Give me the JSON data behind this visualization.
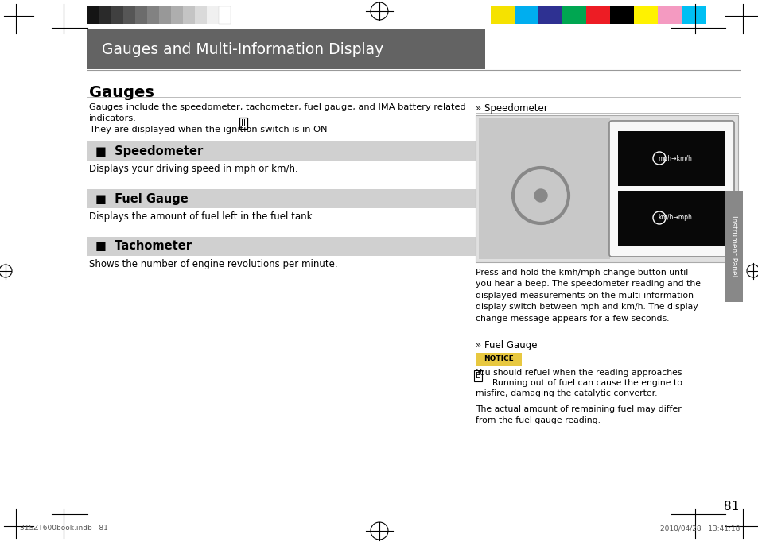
{
  "page_bg": "#ffffff",
  "content_bg": "#f0f0f0",
  "header_bar_color": "#636363",
  "header_bar_text": "Gauges and Multi-Information Display",
  "header_bar_text_color": "#ffffff",
  "title": "Gauges",
  "body_text_1": "Gauges include the speedometer, tachometer, fuel gauge, and IMA battery related\nindicators.",
  "body_text_2": "They are displayed when the ignition switch is in ON ",
  "ii_symbol": "II",
  "section_bar_bg": "#d0d0d0",
  "section_labels": [
    "■  Speedometer",
    "■  Fuel Gauge",
    "■  Tachometer"
  ],
  "section_descs": [
    "Displays your driving speed in mph or km/h.",
    "Displays the amount of fuel left in the fuel tank.",
    "Shows the number of engine revolutions per minute."
  ],
  "speedometer_label": "» Speedometer",
  "press_hold_text": "Press and hold the kmh/mph change button until\nyou hear a beep. The speedometer reading and the\ndisplayed measurements on the multi-information\ndisplay switch between mph and km/h. The display\nchange message appears for a few seconds.",
  "fuel_gauge_label": "» Fuel Gauge",
  "notice_label": "NOTICE",
  "notice_bg": "#e8c840",
  "notice_text": "You should refuel when the reading approaches\n    . Running out of fuel can cause the engine to\nmisfire, damaging the catalytic converter.",
  "extra_text": "The actual amount of remaining fuel may differ\nfrom the fuel gauge reading.",
  "side_tab_text": "Instrument Panel",
  "side_tab_bg": "#888888",
  "page_number": "81",
  "footer_left": "31SZT600book.indb   81",
  "footer_right": "2010/04/28   13:41:18",
  "grayscale_colors": [
    "#141414",
    "#2a2a2a",
    "#404040",
    "#565656",
    "#6c6c6c",
    "#828282",
    "#989898",
    "#aeaeae",
    "#c4c4c4",
    "#dadada",
    "#f0f0f0"
  ],
  "color_swatches": [
    "#f5e200",
    "#00aeef",
    "#2e3192",
    "#00a651",
    "#ed1c24",
    "#000000",
    "#fff200",
    "#f49ac1",
    "#00bff3"
  ]
}
